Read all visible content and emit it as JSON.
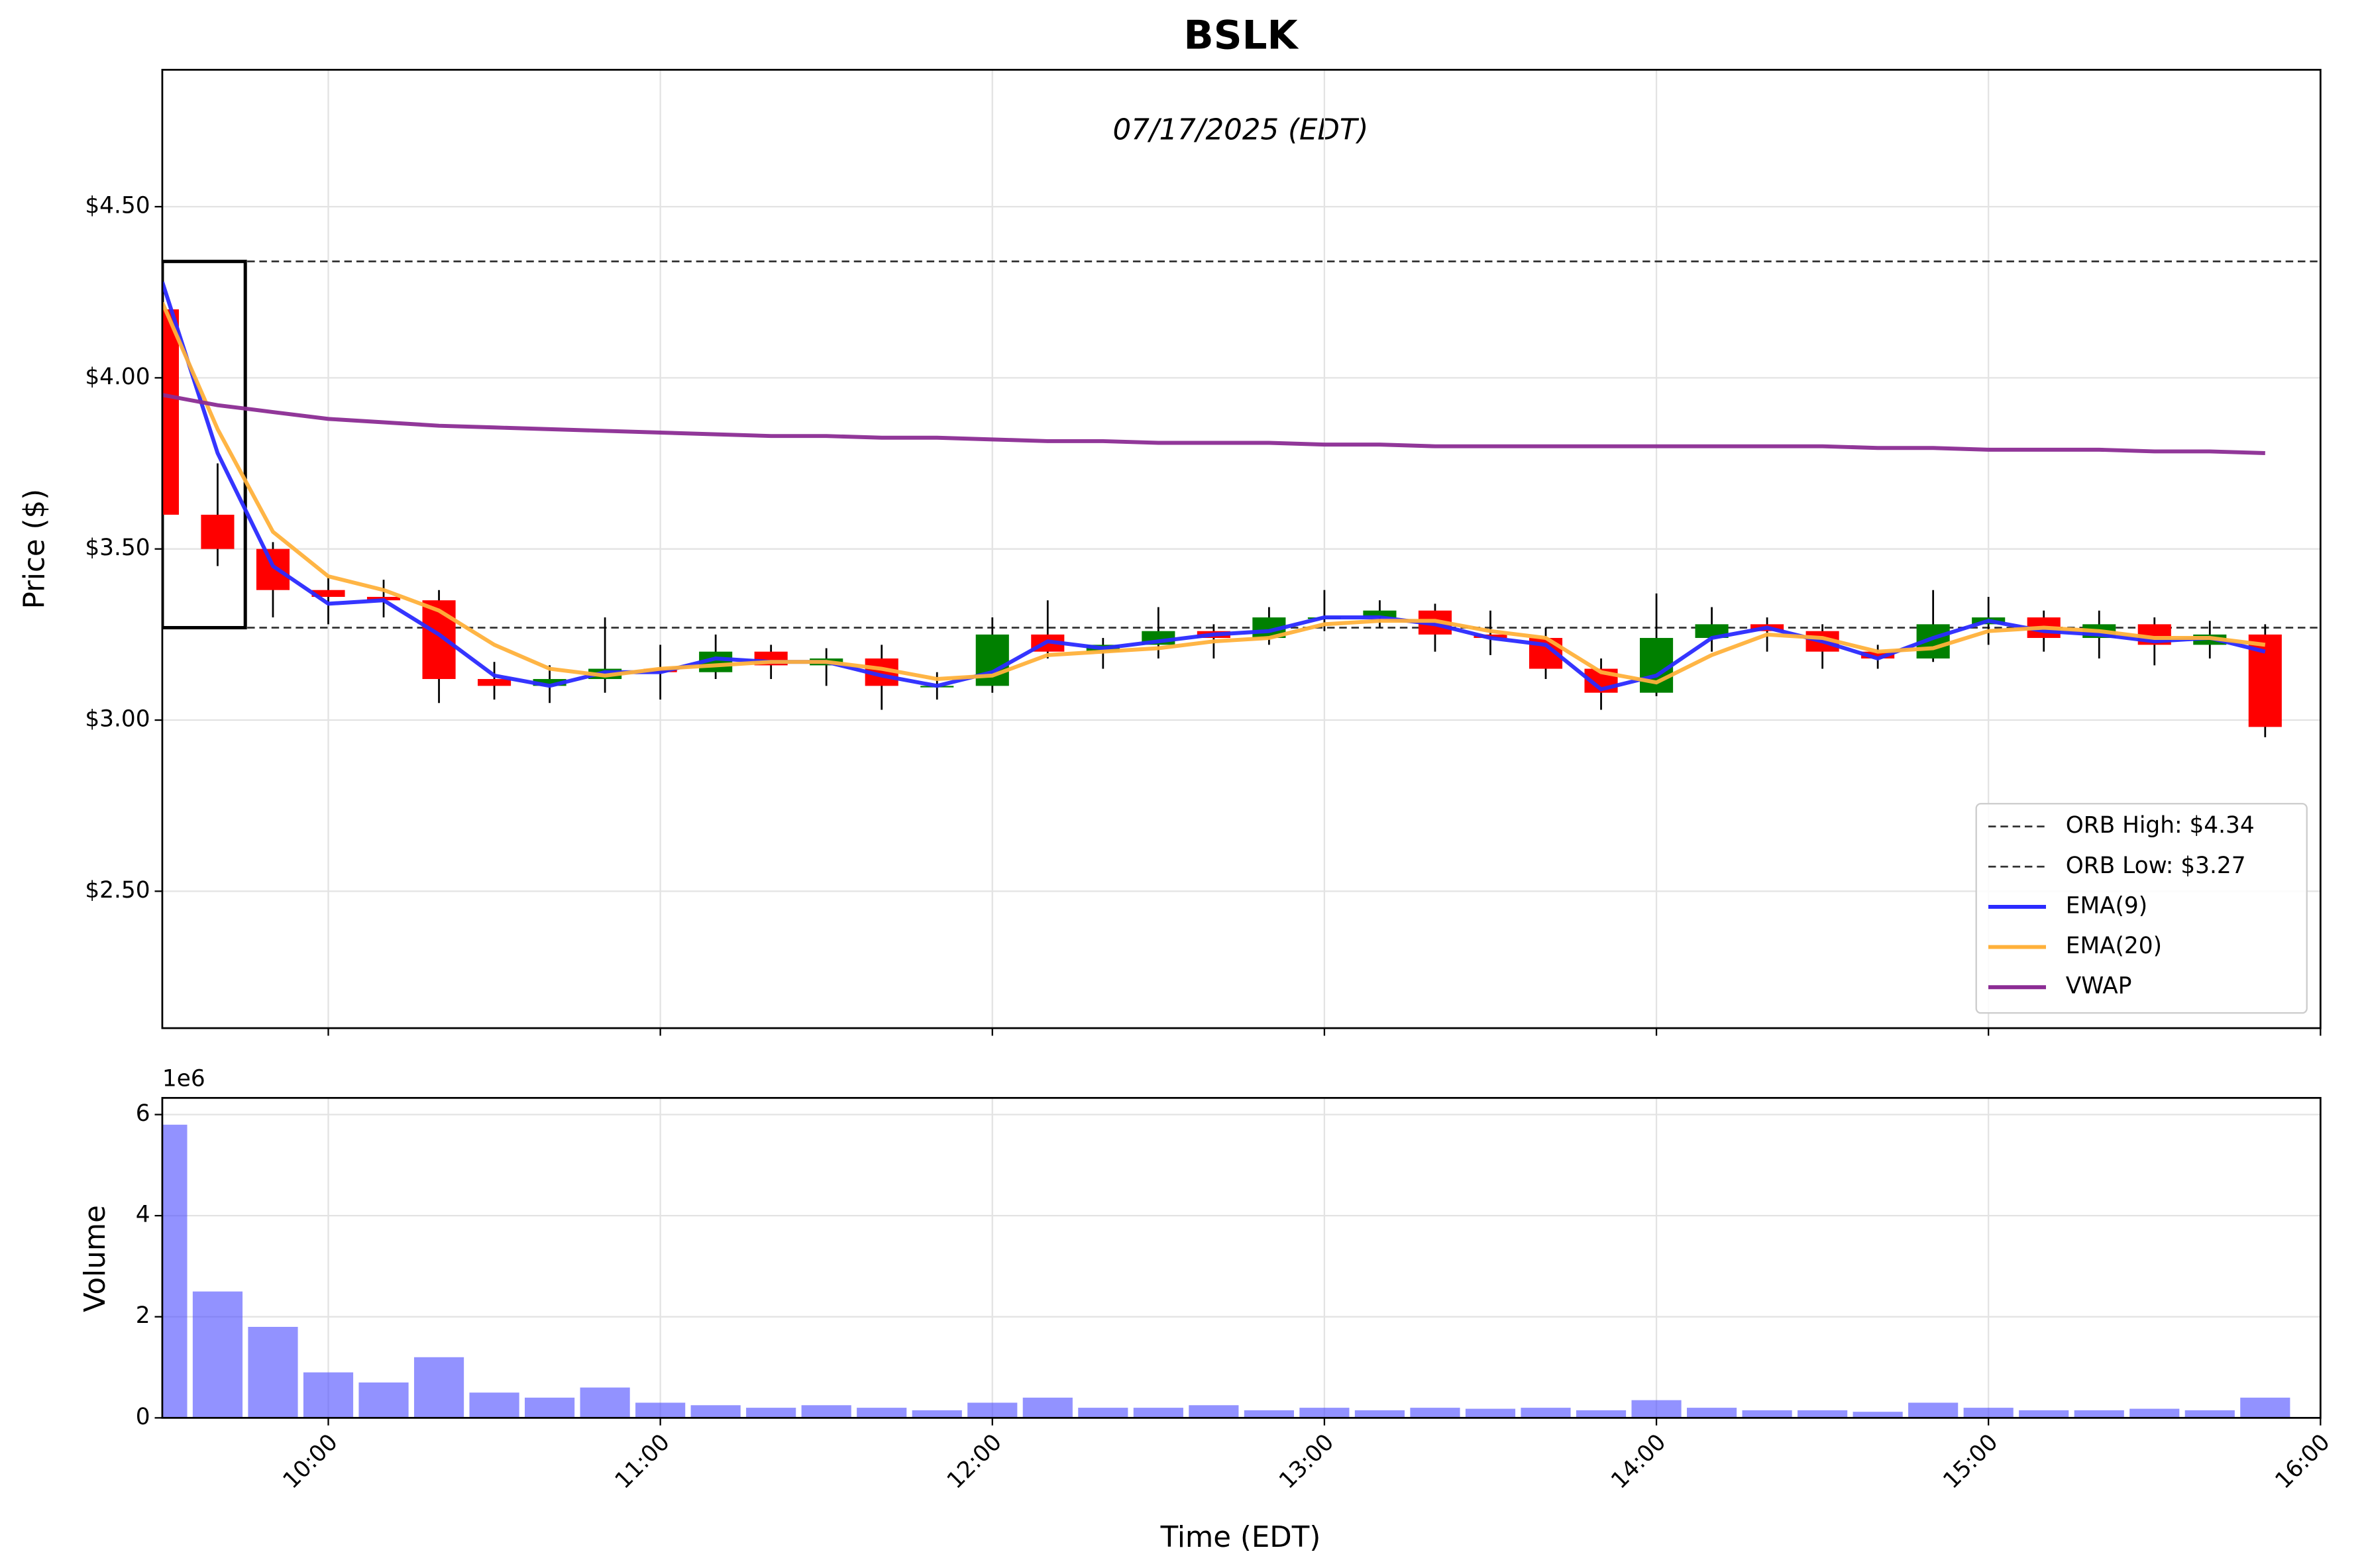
{
  "chart_data": {
    "type": "candlestick",
    "title": "BSLK",
    "subtitle": "07/17/2025 (EDT)",
    "xlabel": "Time (EDT)",
    "ylabel": "Price ($)",
    "x": [
      "09:30",
      "09:40",
      "09:50",
      "10:00",
      "10:10",
      "10:20",
      "10:30",
      "10:40",
      "10:50",
      "11:00",
      "11:10",
      "11:20",
      "11:30",
      "11:40",
      "11:50",
      "12:00",
      "12:10",
      "12:20",
      "12:30",
      "12:40",
      "12:50",
      "13:00",
      "13:10",
      "13:20",
      "13:30",
      "13:40",
      "13:50",
      "14:00",
      "14:10",
      "14:20",
      "14:30",
      "14:40",
      "14:50",
      "15:00",
      "15:10",
      "15:20",
      "15:30",
      "15:40",
      "15:50"
    ],
    "open": [
      4.2,
      3.6,
      3.5,
      3.38,
      3.36,
      3.35,
      3.12,
      3.1,
      3.12,
      3.15,
      3.14,
      3.2,
      3.16,
      3.18,
      3.1,
      3.1,
      3.25,
      3.2,
      3.22,
      3.26,
      3.24,
      3.3,
      3.3,
      3.32,
      3.25,
      3.24,
      3.15,
      3.08,
      3.24,
      3.28,
      3.26,
      3.2,
      3.18,
      3.28,
      3.3,
      3.24,
      3.28,
      3.22,
      3.25
    ],
    "high": [
      4.28,
      3.75,
      3.52,
      3.42,
      3.41,
      3.38,
      3.17,
      3.16,
      3.3,
      3.22,
      3.25,
      3.22,
      3.21,
      3.22,
      3.14,
      3.3,
      3.35,
      3.24,
      3.33,
      3.28,
      3.33,
      3.38,
      3.35,
      3.34,
      3.32,
      3.27,
      3.18,
      3.37,
      3.33,
      3.3,
      3.28,
      3.22,
      3.38,
      3.36,
      3.32,
      3.32,
      3.3,
      3.29,
      3.28
    ],
    "low": [
      3.5,
      3.45,
      3.3,
      3.28,
      3.3,
      3.05,
      3.06,
      3.05,
      3.08,
      3.06,
      3.12,
      3.12,
      3.1,
      3.03,
      3.06,
      3.08,
      3.18,
      3.15,
      3.18,
      3.18,
      3.22,
      3.26,
      3.27,
      3.2,
      3.19,
      3.12,
      3.03,
      3.07,
      3.2,
      3.2,
      3.15,
      3.15,
      3.17,
      3.22,
      3.2,
      3.18,
      3.16,
      3.18,
      2.95
    ],
    "close": [
      3.6,
      3.5,
      3.38,
      3.36,
      3.35,
      3.12,
      3.1,
      3.12,
      3.15,
      3.14,
      3.2,
      3.16,
      3.18,
      3.1,
      3.1,
      3.25,
      3.2,
      3.22,
      3.26,
      3.24,
      3.3,
      3.3,
      3.32,
      3.25,
      3.24,
      3.15,
      3.08,
      3.24,
      3.28,
      3.26,
      3.2,
      3.18,
      3.28,
      3.3,
      3.24,
      3.28,
      3.22,
      3.25,
      2.98
    ],
    "up_color": "#008000",
    "down_color": "#ff0000",
    "series": [
      {
        "name": "EMA(9)",
        "color": "#2a2aff",
        "values": [
          4.28,
          3.78,
          3.45,
          3.34,
          3.35,
          3.25,
          3.13,
          3.1,
          3.14,
          3.14,
          3.18,
          3.17,
          3.17,
          3.13,
          3.1,
          3.14,
          3.23,
          3.21,
          3.23,
          3.25,
          3.26,
          3.3,
          3.3,
          3.28,
          3.24,
          3.22,
          3.09,
          3.13,
          3.24,
          3.27,
          3.23,
          3.18,
          3.24,
          3.29,
          3.26,
          3.25,
          3.23,
          3.24,
          3.2
        ]
      },
      {
        "name": "EMA(20)",
        "color": "#ffb13b",
        "values": [
          4.22,
          3.85,
          3.55,
          3.42,
          3.38,
          3.32,
          3.22,
          3.15,
          3.13,
          3.15,
          3.16,
          3.17,
          3.17,
          3.15,
          3.12,
          3.13,
          3.19,
          3.2,
          3.21,
          3.23,
          3.24,
          3.28,
          3.29,
          3.29,
          3.26,
          3.24,
          3.14,
          3.11,
          3.19,
          3.25,
          3.24,
          3.2,
          3.21,
          3.26,
          3.27,
          3.26,
          3.24,
          3.24,
          3.22
        ]
      },
      {
        "name": "VWAP",
        "color": "#8b2c94",
        "values": [
          3.95,
          3.92,
          3.9,
          3.88,
          3.87,
          3.86,
          3.855,
          3.85,
          3.845,
          3.84,
          3.835,
          3.83,
          3.83,
          3.825,
          3.825,
          3.82,
          3.815,
          3.815,
          3.81,
          3.81,
          3.81,
          3.805,
          3.805,
          3.8,
          3.8,
          3.8,
          3.8,
          3.8,
          3.8,
          3.8,
          3.8,
          3.795,
          3.795,
          3.79,
          3.79,
          3.79,
          3.785,
          3.785,
          3.78
        ]
      }
    ],
    "orb": {
      "start": "09:30",
      "end": "09:45",
      "high": {
        "label": "ORB High: $4.34",
        "value": 4.34
      },
      "low": {
        "label": "ORB Low: $3.27",
        "value": 3.27
      }
    },
    "xlim": [
      "09:30",
      "16:00"
    ],
    "xticks": [
      "10:00",
      "11:00",
      "12:00",
      "13:00",
      "14:00",
      "15:00",
      "16:00"
    ],
    "ylim": [
      2.1,
      4.9
    ],
    "yticks": [
      {
        "value": 2.5,
        "label": "$2.50"
      },
      {
        "value": 3.0,
        "label": "$3.00"
      },
      {
        "value": 3.5,
        "label": "$3.50"
      },
      {
        "value": 4.0,
        "label": "$4.00"
      },
      {
        "value": 4.5,
        "label": "$4.50"
      }
    ],
    "grid": true,
    "legend": "lower right",
    "volume": {
      "ylabel": "Volume",
      "offset_label": "1e6",
      "color": "#4a4aff",
      "values": [
        5800000,
        2500000,
        1800000,
        900000,
        700000,
        1200000,
        500000,
        400000,
        600000,
        300000,
        250000,
        200000,
        250000,
        200000,
        150000,
        300000,
        400000,
        200000,
        200000,
        250000,
        150000,
        200000,
        150000,
        200000,
        180000,
        200000,
        150000,
        350000,
        200000,
        150000,
        150000,
        120000,
        300000,
        200000,
        150000,
        150000,
        180000,
        150000,
        400000
      ],
      "ylim": [
        0,
        6330000
      ],
      "yticks": [
        0,
        {
          "value": 2000000,
          "label": "2"
        },
        {
          "value": 4000000,
          "label": "4"
        },
        {
          "value": 6000000,
          "label": "6"
        }
      ]
    }
  }
}
